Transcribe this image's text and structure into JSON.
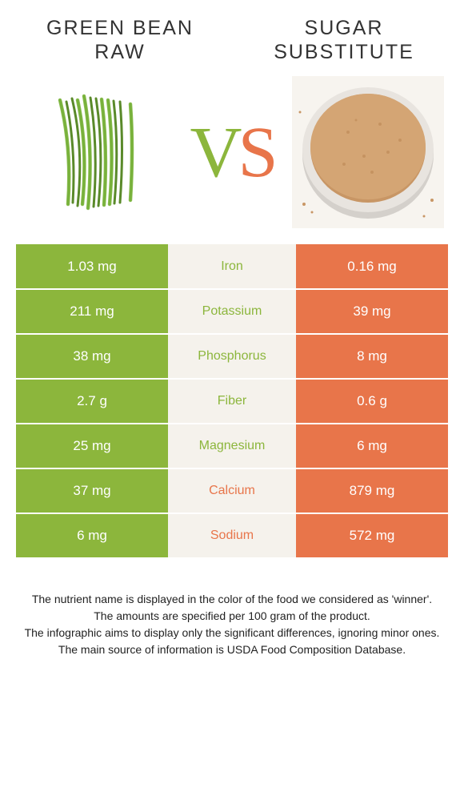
{
  "header": {
    "left_title": "GREEN BEAN RAW",
    "right_title": "SUGAR SUBSTITUTE"
  },
  "vs": {
    "v": "V",
    "s": "S"
  },
  "colors": {
    "green": "#8cb63c",
    "orange": "#e8754a",
    "mid_bg": "#f5f2ec"
  },
  "rows": [
    {
      "left": "1.03 mg",
      "label": "Iron",
      "right": "0.16 mg",
      "winner": "green"
    },
    {
      "left": "211 mg",
      "label": "Potassium",
      "right": "39 mg",
      "winner": "green"
    },
    {
      "left": "38 mg",
      "label": "Phosphorus",
      "right": "8 mg",
      "winner": "green"
    },
    {
      "left": "2.7 g",
      "label": "Fiber",
      "right": "0.6 g",
      "winner": "green"
    },
    {
      "left": "25 mg",
      "label": "Magnesium",
      "right": "6 mg",
      "winner": "green"
    },
    {
      "left": "37 mg",
      "label": "Calcium",
      "right": "879 mg",
      "winner": "orange"
    },
    {
      "left": "6 mg",
      "label": "Sodium",
      "right": "572 mg",
      "winner": "orange"
    }
  ],
  "footer": {
    "line1": "The nutrient name is displayed in the color of the food we considered as 'winner'.",
    "line2": "The amounts are specified per 100 gram of the product.",
    "line3": "The infographic aims to display only the significant differences, ignoring minor ones.",
    "line4": "The main source of information is USDA Food Composition Database."
  }
}
